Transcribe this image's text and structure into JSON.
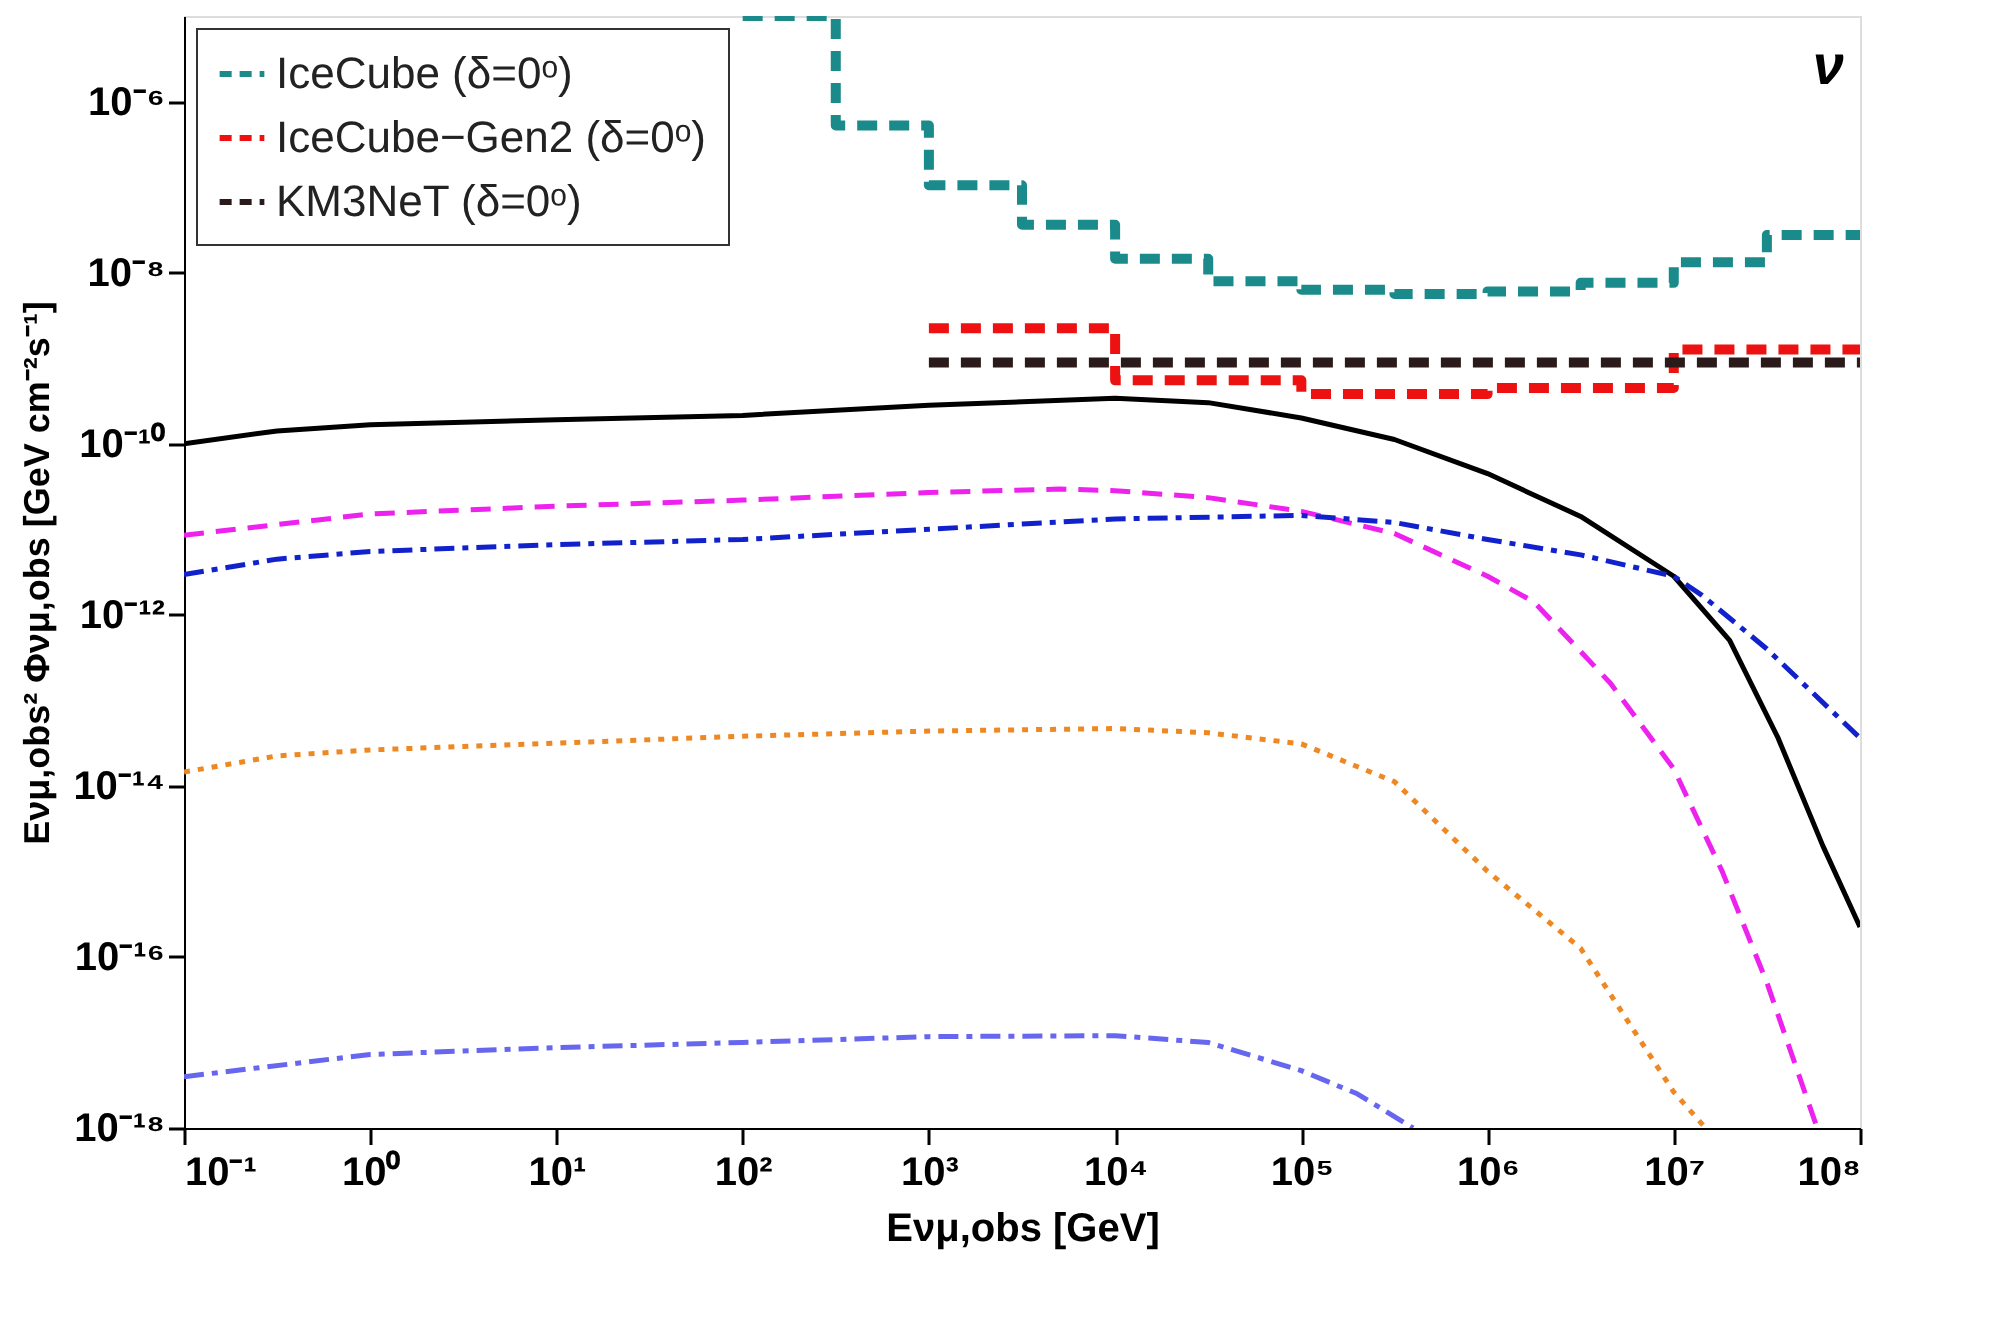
{
  "chart_data": {
    "type": "line",
    "xlabel": "Eνμ,obs [GeV]",
    "ylabel": "Eνμ,obs² Φνμ,obs [GeV cm⁻²s⁻¹]",
    "annotations": [
      "ν"
    ],
    "log": "xy",
    "grid": false,
    "legend": "top left",
    "marker": "none",
    "xlim": [
      0.1,
      100000000
    ],
    "ylim": [
      1e-18,
      1e-05
    ],
    "xticks": [
      {
        "value": 0.1,
        "label": "10⁻¹"
      },
      {
        "value": 1,
        "label": "10⁰"
      },
      {
        "value": 10,
        "label": "10¹"
      },
      {
        "value": 100,
        "label": "10²"
      },
      {
        "value": 1000,
        "label": "10³"
      },
      {
        "value": 10000,
        "label": "10⁴"
      },
      {
        "value": 100000,
        "label": "10⁵"
      },
      {
        "value": 1000000,
        "label": "10⁶"
      },
      {
        "value": 10000000,
        "label": "10⁷"
      },
      {
        "value": 100000000,
        "label": "10⁸"
      }
    ],
    "yticks": [
      {
        "value": 1e-18,
        "label": "10⁻¹⁸"
      },
      {
        "value": 1e-16,
        "label": "10⁻¹⁶"
      },
      {
        "value": 1e-14,
        "label": "10⁻¹⁴"
      },
      {
        "value": 1e-12,
        "label": "10⁻¹²"
      },
      {
        "value": 1e-10,
        "label": "10⁻¹⁰"
      },
      {
        "value": 1e-08,
        "label": "10⁻⁸"
      },
      {
        "value": 1e-06,
        "label": "10⁻⁶"
      }
    ],
    "series": [
      {
        "name": "IceCube (δ=0ᵒ)",
        "type": "step",
        "color": "#1a8a8a",
        "line_style": "dashed",
        "x": [
          100,
          316.2,
          1000,
          3162,
          10000,
          31623,
          100000,
          316228,
          1000000,
          3162278,
          10000000,
          31622777,
          100000000
        ],
        "values": [
          1e-05,
          5.25e-07,
          1.05e-07,
          3.63e-08,
          1.45e-08,
          7.94e-09,
          6.31e-09,
          5.62e-09,
          6.03e-09,
          7.59e-09,
          1.32e-08,
          2.75e-08,
          2.75e-08
        ]
      },
      {
        "name": "IceCube−Gen2 (δ=0ᵒ)",
        "type": "step",
        "color": "#ee1111",
        "line_style": "dashed",
        "x": [
          1000,
          10000,
          100000,
          1000000,
          10000000,
          100000000
        ],
        "values": [
          2.24e-09,
          5.5e-10,
          3.8e-10,
          4.47e-10,
          1.26e-09,
          1.26e-09
        ]
      },
      {
        "name": "KM3NeT (δ=0ᵒ)",
        "type": "step",
        "color": "#2a1a1a",
        "line_style": "dashed",
        "x": [
          1000,
          100000000
        ],
        "values": [
          8.91e-10,
          8.91e-10
        ]
      },
      {
        "color": "#000000",
        "line_style": "solid",
        "x": [
          0.1,
          0.316,
          1,
          10,
          100,
          1000,
          10000,
          31623,
          100000,
          316228,
          1000000,
          3162278,
          10000000,
          19952623,
          36307805,
          63095734,
          100000000
        ],
        "values": [
          1e-10,
          1.41e-10,
          1.66e-10,
          1.91e-10,
          2.14e-10,
          2.82e-10,
          3.39e-10,
          3.02e-10,
          2e-10,
          1.12e-10,
          4.47e-11,
          1.41e-11,
          2.82e-12,
          5.01e-13,
          3.63e-14,
          2e-15,
          2.24e-16
        ]
      },
      {
        "color": "#ee22ee",
        "line_style": "dashed",
        "x": [
          0.1,
          1,
          10,
          100,
          1000,
          5012,
          10000,
          31623,
          100000,
          316228,
          1000000,
          1778279,
          4570882,
          10000000,
          18197009,
          31622777,
          58884366
        ],
        "values": [
          8.51e-12,
          1.51e-11,
          1.86e-11,
          2.19e-11,
          2.69e-11,
          2.95e-11,
          2.82e-11,
          2.34e-11,
          1.62e-11,
          8.91e-12,
          2.82e-12,
          1.41e-12,
          1.58e-13,
          1.58e-14,
          1e-15,
          5.01e-17,
          1e-18
        ]
      },
      {
        "color": "#1122cc",
        "line_style": "dashdot",
        "x": [
          0.1,
          0.316,
          1,
          10,
          100,
          1000,
          10000,
          100000,
          316228,
          1000000,
          3162278,
          10000000,
          14125375,
          31622777,
          100000000
        ],
        "values": [
          2.95e-12,
          4.47e-12,
          5.5e-12,
          6.61e-12,
          7.59e-12,
          1e-11,
          1.32e-11,
          1.45e-11,
          1.2e-11,
          7.59e-12,
          5.01e-12,
          2.82e-12,
          1.7e-12,
          3.98e-13,
          3.63e-14
        ]
      },
      {
        "color": "#ee8822",
        "line_style": "dotted",
        "x": [
          0.1,
          0.316,
          1,
          10,
          100,
          1000,
          10000,
          31623,
          100000,
          316228,
          1000000,
          3162278,
          10000000,
          14791084
        ],
        "values": [
          1.45e-14,
          2.24e-14,
          2.63e-14,
          3.16e-14,
          3.8e-14,
          4.37e-14,
          4.68e-14,
          4.17e-14,
          3.09e-14,
          1.12e-14,
          1e-15,
          1.26e-16,
          2.63e-18,
          1e-18
        ]
      },
      {
        "color": "#6666ee",
        "line_style": "dashdot",
        "x": [
          0.1,
          1,
          10,
          100,
          1000,
          10000,
          31623,
          100000,
          199526,
          398107
        ],
        "values": [
          3.98e-18,
          7.24e-18,
          8.71e-18,
          1e-17,
          1.17e-17,
          1.2e-17,
          1e-17,
          4.68e-18,
          2.51e-18,
          1e-18
        ]
      }
    ]
  }
}
